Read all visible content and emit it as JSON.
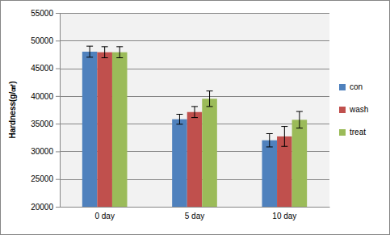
{
  "chart_data": {
    "type": "bar",
    "y_label": "Hardness(g/㎠)",
    "categories": [
      "0 day",
      "5 day",
      "10 day"
    ],
    "series": [
      {
        "name": "con",
        "color": "#4f81bd",
        "values": [
          48000,
          35800,
          32000
        ],
        "errors": [
          1000,
          900,
          1200
        ]
      },
      {
        "name": "wash",
        "color": "#c0504d",
        "values": [
          47900,
          37100,
          32700
        ],
        "errors": [
          1000,
          1000,
          1800
        ]
      },
      {
        "name": "treat",
        "color": "#9bbb59",
        "values": [
          47900,
          39500,
          35700
        ],
        "errors": [
          1000,
          1400,
          1500
        ]
      }
    ],
    "ylim": [
      20000,
      55000
    ],
    "yticks": [
      20000,
      25000,
      30000,
      35000,
      40000,
      45000,
      50000,
      55000
    ],
    "grid": true,
    "legend": "right"
  }
}
